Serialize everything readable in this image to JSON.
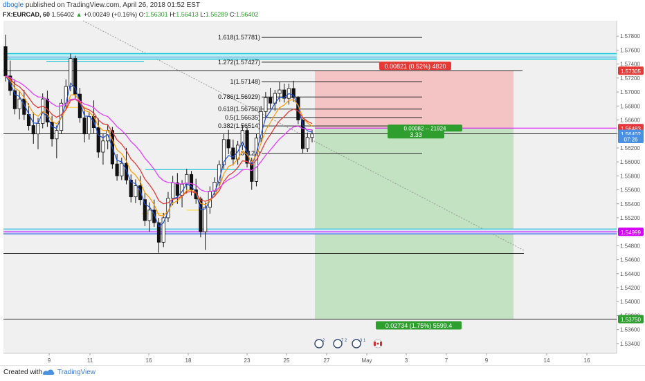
{
  "header": {
    "author": "dbogle",
    "published": "published on TradingView.com, April 26, 2018 01:52 EST",
    "symbol": "FX:EURCAD, 60",
    "last": "1.56402",
    "change": "+0.00249 (+0.16%)",
    "open_label": "O:",
    "open": "1.56301",
    "high_label": "H:",
    "high": "1.56413",
    "low_label": "L:",
    "low": "1.56289",
    "close_label": "C:",
    "close": "1.56402"
  },
  "footer": {
    "created": "Created with",
    "brand": "TradingView"
  },
  "colors": {
    "plot_bg": "#f0f0f0",
    "candle": "#111111",
    "ema_red": "#e53935",
    "ema_pink": "#e040fb",
    "ema_orange": "#ff9800",
    "blue_line": "#1f4ed8",
    "cyan": "#26c6da",
    "risk_zone": "#f4c3c3",
    "reward_zone": "#c2e2c2",
    "badge_red": "#e53935",
    "badge_green": "#2e9e2e",
    "badge_blue": "#4a90e2",
    "magenta_line": "#d500f9"
  },
  "chart_data": {
    "type": "candlestick",
    "xlabel": "",
    "ylabel": "",
    "ylim": [
      1.5326,
      1.5802
    ],
    "x_ticks": [
      "9",
      "11",
      "16",
      "18",
      "23",
      "25",
      "27",
      "May",
      "3",
      "7",
      "9",
      "14",
      "16"
    ],
    "y_ticks": [
      "1.57800",
      "1.57600",
      "1.57400",
      "1.57200",
      "1.57000",
      "1.56800",
      "1.56600",
      "1.56400",
      "1.56200",
      "1.56000",
      "1.55800",
      "1.55600",
      "1.55400",
      "1.55200",
      "1.55000",
      "1.54800",
      "1.54600",
      "1.54400",
      "1.54200",
      "1.54000",
      "1.53800",
      "1.53600",
      "1.53400"
    ],
    "price_badges": [
      {
        "label": "1.57305",
        "value": 1.57305,
        "color": "#e53935"
      },
      {
        "label": "1.56484",
        "value": 1.56484,
        "color": "#d500f9"
      },
      {
        "label": "1.56483",
        "value": 1.56483,
        "color": "#e53935"
      },
      {
        "label": "1.56402",
        "value": 1.56402,
        "color": "#4a90e2"
      },
      {
        "label": "07:26",
        "value": 1.56328,
        "color": "#4a90e2"
      },
      {
        "label": "1.54999",
        "value": 1.54999,
        "color": "#d500f9"
      },
      {
        "label": "1.53750",
        "value": 1.5375,
        "color": "#2e9e2e"
      }
    ],
    "fibonacci": [
      {
        "label": "1.618(1.57781)",
        "value": 1.57781
      },
      {
        "label": "1.272(1.57427)",
        "value": 1.57427
      },
      {
        "label": "1(1.57148)",
        "value": 1.57148
      },
      {
        "label": "0.786(1.56929)",
        "value": 1.56929
      },
      {
        "label": "0.618(1.56756)",
        "value": 1.56756
      },
      {
        "label": "0.5(1.56635)",
        "value": 1.56635
      },
      {
        "label": "0.382(1.56514)",
        "value": 1.56514
      },
      {
        "label": "0(1.56123)",
        "value": 1.56123
      }
    ],
    "position": {
      "entry": 1.56484,
      "stop": 1.57305,
      "target": 1.5375,
      "stop_label": "0.00821 (0.52%) 4820",
      "entry_label": "0.00082 -- 21924",
      "ratio_label": "3.33",
      "target_label": "0.02734 (1.75%) 5599.4"
    },
    "horizontal_levels": [
      {
        "name": "cyan-resistance-band",
        "value": 1.5751
      },
      {
        "name": "resistance-line",
        "value": 1.57305
      },
      {
        "name": "current-price-line",
        "value": 1.56402
      },
      {
        "name": "blue-support-band",
        "value": 1.55
      },
      {
        "name": "support-line",
        "value": 1.5469
      },
      {
        "name": "target-line",
        "value": 1.5375
      }
    ],
    "candles": [
      [
        1.5765,
        1.5782,
        1.5715,
        1.5723
      ],
      [
        1.5723,
        1.5745,
        1.5695,
        1.5702
      ],
      [
        1.5702,
        1.5718,
        1.5668,
        1.5676
      ],
      [
        1.5676,
        1.5702,
        1.5661,
        1.569
      ],
      [
        1.569,
        1.5703,
        1.566,
        1.5668
      ],
      [
        1.5668,
        1.5684,
        1.5645,
        1.5652
      ],
      [
        1.5652,
        1.5671,
        1.5626,
        1.564
      ],
      [
        1.564,
        1.5663,
        1.5618,
        1.5655
      ],
      [
        1.5655,
        1.5698,
        1.5648,
        1.569
      ],
      [
        1.569,
        1.5702,
        1.565,
        1.5657
      ],
      [
        1.5657,
        1.5666,
        1.5622,
        1.5633
      ],
      [
        1.5633,
        1.5652,
        1.5605,
        1.5645
      ],
      [
        1.5645,
        1.569,
        1.564,
        1.5684
      ],
      [
        1.5684,
        1.5718,
        1.5676,
        1.5708
      ],
      [
        1.5708,
        1.5755,
        1.5701,
        1.5748
      ],
      [
        1.5748,
        1.5752,
        1.569,
        1.5697
      ],
      [
        1.5697,
        1.5706,
        1.5656,
        1.5663
      ],
      [
        1.5663,
        1.5676,
        1.5628,
        1.564
      ],
      [
        1.564,
        1.5672,
        1.5632,
        1.5665
      ],
      [
        1.5665,
        1.5688,
        1.5641,
        1.5649
      ],
      [
        1.5649,
        1.5662,
        1.5606,
        1.5614
      ],
      [
        1.5614,
        1.564,
        1.5596,
        1.563
      ],
      [
        1.563,
        1.5654,
        1.5618,
        1.5645
      ],
      [
        1.5645,
        1.565,
        1.559,
        1.5597
      ],
      [
        1.5597,
        1.5611,
        1.5573,
        1.558
      ],
      [
        1.558,
        1.5606,
        1.5574,
        1.5598
      ],
      [
        1.5598,
        1.562,
        1.5568,
        1.5574
      ],
      [
        1.5574,
        1.5582,
        1.5542,
        1.555
      ],
      [
        1.555,
        1.5575,
        1.5541,
        1.5566
      ],
      [
        1.5566,
        1.558,
        1.5538,
        1.5546
      ],
      [
        1.5546,
        1.5556,
        1.5508,
        1.5516
      ],
      [
        1.5516,
        1.5542,
        1.55,
        1.5531
      ],
      [
        1.5531,
        1.5546,
        1.5507,
        1.5513
      ],
      [
        1.5513,
        1.552,
        1.547,
        1.5485
      ],
      [
        1.5485,
        1.5527,
        1.5478,
        1.552
      ],
      [
        1.552,
        1.5557,
        1.5514,
        1.5548
      ],
      [
        1.5548,
        1.558,
        1.5538,
        1.557
      ],
      [
        1.557,
        1.5584,
        1.554,
        1.5552
      ],
      [
        1.5552,
        1.5574,
        1.5535,
        1.5568
      ],
      [
        1.5568,
        1.559,
        1.5555,
        1.5582
      ],
      [
        1.5582,
        1.5587,
        1.5552,
        1.556
      ],
      [
        1.556,
        1.5576,
        1.554,
        1.5547
      ],
      [
        1.5547,
        1.555,
        1.5492,
        1.55
      ],
      [
        1.55,
        1.5542,
        1.5474,
        1.5535
      ],
      [
        1.5535,
        1.5565,
        1.5526,
        1.5558
      ],
      [
        1.5558,
        1.5578,
        1.555,
        1.5571
      ],
      [
        1.5571,
        1.5602,
        1.5565,
        1.5596
      ],
      [
        1.5596,
        1.564,
        1.559,
        1.5632
      ],
      [
        1.5632,
        1.5646,
        1.5611,
        1.562
      ],
      [
        1.562,
        1.5632,
        1.5595,
        1.5604
      ],
      [
        1.5604,
        1.563,
        1.5596,
        1.5624
      ],
      [
        1.5624,
        1.5652,
        1.5617,
        1.5645
      ],
      [
        1.5645,
        1.565,
        1.5592,
        1.5598
      ],
      [
        1.5598,
        1.5606,
        1.556,
        1.5572
      ],
      [
        1.5572,
        1.564,
        1.5565,
        1.5634
      ],
      [
        1.5634,
        1.568,
        1.5628,
        1.5672
      ],
      [
        1.5672,
        1.57,
        1.5664,
        1.5692
      ],
      [
        1.5692,
        1.5706,
        1.5676,
        1.5684
      ],
      [
        1.5684,
        1.5703,
        1.5673,
        1.5698
      ],
      [
        1.5698,
        1.5714,
        1.5686,
        1.5703
      ],
      [
        1.5703,
        1.5712,
        1.5685,
        1.5691
      ],
      [
        1.5691,
        1.5712,
        1.5682,
        1.5705
      ],
      [
        1.5705,
        1.5716,
        1.5686,
        1.5692
      ],
      [
        1.5692,
        1.5694,
        1.5654,
        1.566
      ],
      [
        1.566,
        1.5662,
        1.5612,
        1.5619
      ],
      [
        1.5619,
        1.5642,
        1.5614,
        1.5635
      ],
      [
        1.5635,
        1.5646,
        1.5628,
        1.564
      ]
    ]
  }
}
